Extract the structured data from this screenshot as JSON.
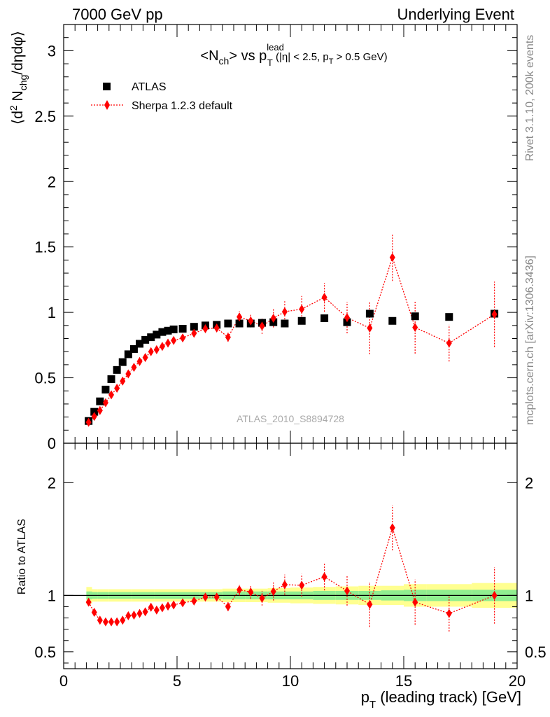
{
  "header": {
    "left": "7000 GeV pp",
    "right": "Underlying Event"
  },
  "side_labels": {
    "rivet": "Rivet 3.1.10,  200k events",
    "mcplots": "mcplots.cern.ch [arXiv:1306.3436]"
  },
  "title": {
    "main": "<N",
    "main_sub": "ch",
    "mid": "> vs p",
    "pt_sup": "lead",
    "pt_sub": "T",
    "cuts_a": " (|η| < 2.5, p",
    "cuts_sub": "T",
    "cuts_b": " > 0.5 GeV)"
  },
  "ylabel_top": {
    "a": "⟨d",
    "sup": "2",
    "b": " N",
    "sub": "chg",
    "c": "/dηdφ⟩"
  },
  "ylabel_bottom": "Ratio to ATLAS",
  "xlabel": {
    "a": "p",
    "sub": "T",
    "b": " (leading track) [GeV]"
  },
  "watermark": "ATLAS_2010_S8894728",
  "legend": [
    {
      "name": "ATLAS",
      "color": "#000000",
      "marker": "square"
    },
    {
      "name": "Sherpa 1.2.3 default",
      "color": "#ff0000",
      "marker": "diamond",
      "line": "dotted"
    }
  ],
  "chart_data": [
    {
      "type": "scatter",
      "panel": "main",
      "xlim": [
        0,
        20
      ],
      "ylim": [
        0,
        3.2
      ],
      "yticks": [
        "0",
        "0.5",
        "1",
        "1.5",
        "2",
        "2.5",
        "3"
      ],
      "xticks": [
        "0",
        "5",
        "10",
        "15",
        "20"
      ],
      "series": [
        {
          "name": "ATLAS",
          "color": "#000000",
          "x": [
            1.1,
            1.35,
            1.6,
            1.85,
            2.1,
            2.35,
            2.6,
            2.85,
            3.1,
            3.35,
            3.6,
            3.85,
            4.1,
            4.35,
            4.6,
            4.85,
            5.25,
            5.75,
            6.25,
            6.75,
            7.25,
            7.75,
            8.25,
            8.75,
            9.25,
            9.75,
            10.5,
            11.5,
            12.5,
            13.5,
            14.5,
            15.5,
            17.0,
            19.0
          ],
          "y": [
            0.17,
            0.24,
            0.32,
            0.41,
            0.49,
            0.56,
            0.62,
            0.68,
            0.72,
            0.76,
            0.79,
            0.81,
            0.83,
            0.85,
            0.86,
            0.87,
            0.875,
            0.89,
            0.9,
            0.905,
            0.915,
            0.915,
            0.915,
            0.92,
            0.925,
            0.915,
            0.935,
            0.955,
            0.925,
            0.99,
            0.935,
            0.97,
            0.965,
            0.99
          ]
        },
        {
          "name": "Sherpa 1.2.3 default",
          "color": "#ff0000",
          "x": [
            1.1,
            1.35,
            1.6,
            1.85,
            2.1,
            2.35,
            2.6,
            2.85,
            3.1,
            3.35,
            3.6,
            3.85,
            4.1,
            4.35,
            4.6,
            4.85,
            5.25,
            5.75,
            6.25,
            6.75,
            7.25,
            7.75,
            8.25,
            8.75,
            9.25,
            9.75,
            10.5,
            11.5,
            12.5,
            13.5,
            14.5,
            15.5,
            17.0,
            19.0
          ],
          "y": [
            0.16,
            0.205,
            0.25,
            0.31,
            0.37,
            0.42,
            0.475,
            0.53,
            0.58,
            0.625,
            0.655,
            0.7,
            0.715,
            0.74,
            0.765,
            0.785,
            0.805,
            0.84,
            0.875,
            0.88,
            0.81,
            0.965,
            0.935,
            0.895,
            0.955,
            1.005,
            1.025,
            1.115,
            0.96,
            0.88,
            1.42,
            0.885,
            0.765,
            0.985
          ],
          "yerr": [
            0.005,
            0.005,
            0.005,
            0.005,
            0.005,
            0.005,
            0.005,
            0.005,
            0.005,
            0.005,
            0.01,
            0.01,
            0.01,
            0.01,
            0.01,
            0.015,
            0.015,
            0.02,
            0.025,
            0.03,
            0.035,
            0.045,
            0.05,
            0.06,
            0.07,
            0.08,
            0.1,
            0.11,
            0.12,
            0.2,
            0.18,
            0.2,
            0.14,
            0.25
          ]
        }
      ]
    },
    {
      "type": "scatter",
      "panel": "ratio",
      "xlim": [
        0,
        20
      ],
      "ylim": [
        0.35,
        2.35
      ],
      "yticks": [
        "0.5",
        "1",
        "2"
      ],
      "reference": 1,
      "bands": {
        "inner_color": "#90ee90",
        "outer_color": "#ffff90",
        "x_edges": [
          1,
          1.25,
          1.5,
          2,
          3,
          4,
          5,
          6,
          7,
          8,
          9,
          10,
          11,
          12,
          13,
          14,
          15,
          16,
          18,
          20
        ],
        "inner": [
          0.035,
          0.03,
          0.03,
          0.03,
          0.03,
          0.03,
          0.03,
          0.03,
          0.035,
          0.035,
          0.035,
          0.035,
          0.04,
          0.04,
          0.04,
          0.045,
          0.05,
          0.05,
          0.05
        ],
        "outer": [
          0.075,
          0.055,
          0.055,
          0.055,
          0.055,
          0.055,
          0.055,
          0.055,
          0.06,
          0.06,
          0.065,
          0.07,
          0.075,
          0.08,
          0.085,
          0.085,
          0.1,
          0.1,
          0.11
        ]
      },
      "series": [
        {
          "name": "Sherpa 1.2.3 default",
          "color": "#ff0000",
          "x": [
            1.1,
            1.35,
            1.6,
            1.85,
            2.1,
            2.35,
            2.6,
            2.85,
            3.1,
            3.35,
            3.6,
            3.85,
            4.1,
            4.35,
            4.6,
            4.85,
            5.25,
            5.75,
            6.25,
            6.75,
            7.25,
            7.75,
            8.25,
            8.75,
            9.25,
            9.75,
            10.5,
            11.5,
            12.5,
            13.5,
            14.5,
            15.5,
            17.0,
            19.0
          ],
          "y": [
            0.94,
            0.85,
            0.78,
            0.765,
            0.765,
            0.765,
            0.78,
            0.82,
            0.825,
            0.84,
            0.855,
            0.895,
            0.87,
            0.89,
            0.905,
            0.915,
            0.935,
            0.95,
            0.985,
            0.985,
            0.9,
            1.05,
            1.03,
            0.975,
            1.035,
            1.095,
            1.09,
            1.165,
            1.04,
            0.92,
            1.6,
            0.94,
            0.84,
            1.0
          ],
          "yerr": [
            0.005,
            0.005,
            0.005,
            0.005,
            0.005,
            0.005,
            0.005,
            0.005,
            0.005,
            0.005,
            0.01,
            0.01,
            0.01,
            0.01,
            0.015,
            0.015,
            0.02,
            0.02,
            0.03,
            0.035,
            0.04,
            0.05,
            0.06,
            0.065,
            0.08,
            0.09,
            0.1,
            0.12,
            0.13,
            0.2,
            0.2,
            0.2,
            0.16,
            0.25
          ]
        }
      ]
    }
  ]
}
